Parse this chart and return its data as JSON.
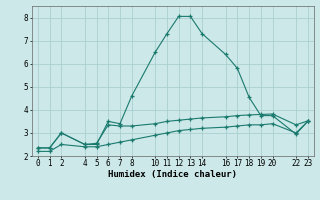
{
  "xlabel": "Humidex (Indice chaleur)",
  "background_color": "#cce8e8",
  "grid_color": "#aacfcf",
  "line_color": "#1a7a6e",
  "xlim": [
    -0.5,
    23.5
  ],
  "ylim": [
    2.0,
    8.5
  ],
  "xticks": [
    0,
    1,
    2,
    4,
    5,
    6,
    7,
    8,
    10,
    11,
    12,
    13,
    14,
    16,
    17,
    18,
    19,
    20,
    22,
    23
  ],
  "yticks": [
    2,
    3,
    4,
    5,
    6,
    7,
    8
  ],
  "line1_x": [
    0,
    1,
    2,
    4,
    5,
    6,
    7,
    8,
    10,
    11,
    12,
    13,
    14,
    16,
    17,
    18,
    19,
    20,
    22,
    23
  ],
  "line1_y": [
    2.35,
    2.35,
    3.0,
    2.5,
    2.5,
    3.5,
    3.4,
    4.6,
    6.5,
    7.3,
    8.05,
    8.05,
    7.3,
    6.4,
    5.8,
    4.55,
    3.75,
    3.75,
    2.95,
    3.5
  ],
  "line2_x": [
    0,
    1,
    2,
    4,
    5,
    6,
    7,
    8,
    10,
    11,
    12,
    13,
    14,
    16,
    17,
    18,
    19,
    20,
    22,
    23
  ],
  "line2_y": [
    2.35,
    2.35,
    3.0,
    2.5,
    2.55,
    3.35,
    3.3,
    3.3,
    3.4,
    3.5,
    3.55,
    3.6,
    3.65,
    3.7,
    3.75,
    3.78,
    3.8,
    3.82,
    3.35,
    3.52
  ],
  "line3_x": [
    0,
    1,
    2,
    4,
    5,
    6,
    7,
    8,
    10,
    11,
    12,
    13,
    14,
    16,
    17,
    18,
    19,
    20,
    22,
    23
  ],
  "line3_y": [
    2.2,
    2.2,
    2.5,
    2.4,
    2.4,
    2.5,
    2.6,
    2.7,
    2.9,
    3.0,
    3.1,
    3.15,
    3.2,
    3.25,
    3.3,
    3.35,
    3.35,
    3.4,
    3.0,
    3.5
  ],
  "xlabel_fontsize": 6.5,
  "tick_fontsize": 5.5
}
